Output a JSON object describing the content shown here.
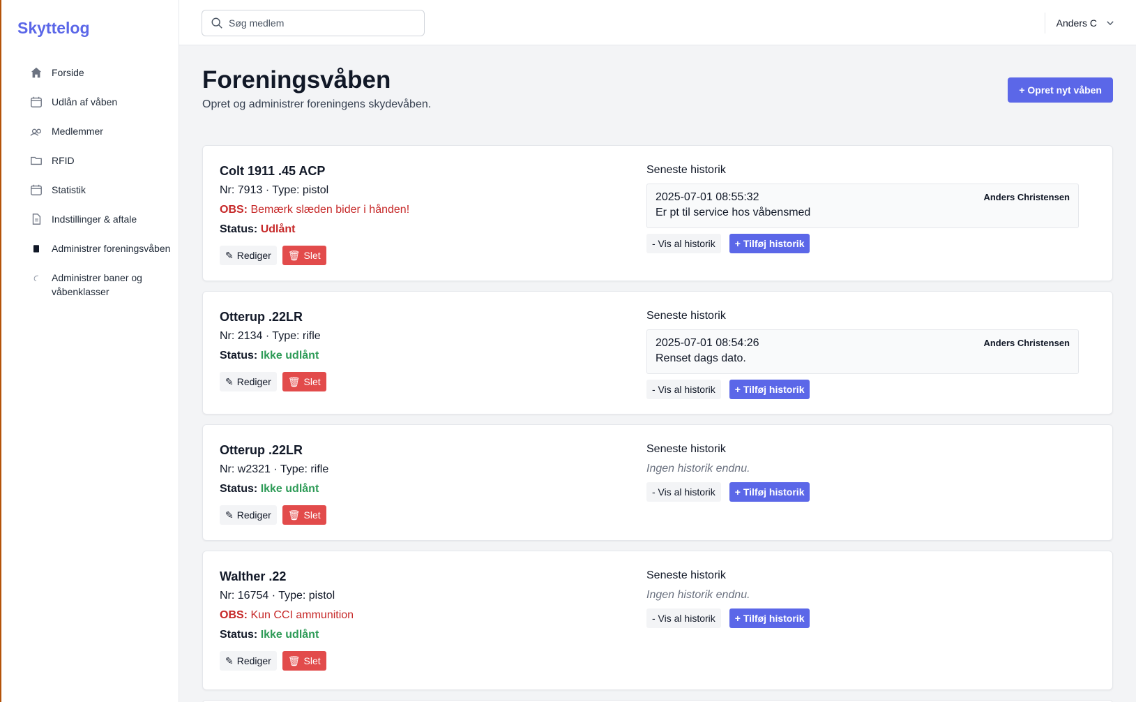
{
  "sidebar": {
    "brand": "Skyttelog",
    "items": [
      {
        "label": "Forside"
      },
      {
        "label": "Udlån af våben"
      },
      {
        "label": "Medlemmer"
      },
      {
        "label": "RFID"
      },
      {
        "label": "Statistik"
      },
      {
        "label": "Indstillinger & aftale"
      },
      {
        "label": "Administrer foreningsvåben"
      },
      {
        "label": "Administrer baner og våbenklasser"
      }
    ]
  },
  "topbar": {
    "search_placeholder": "Søg medlem",
    "user": "Anders C"
  },
  "header": {
    "title": "Foreningsvåben",
    "subtitle": "Opret og administrer foreningens skydevåben.",
    "create_button": "+ Opret nyt våben"
  },
  "labels": {
    "status": "Status:",
    "obs": "OBS:",
    "edit": "Rediger",
    "delete": "Slet",
    "history_title": "Seneste historik",
    "no_history": "Ingen historik endnu.",
    "show_all": "- Vis al historik",
    "add_history": "+ Tilføj historik"
  },
  "weapons": [
    {
      "name": "Colt 1911 .45 ACP",
      "meta": "Nr: 7913 · Type: pistol",
      "obs": "Bemærk slæden bider i hånden!",
      "status": "Udlånt",
      "history": {
        "date": "2025-07-01 08:55:32",
        "text": "Er pt til service hos våbensmed",
        "user": "Anders Christensen"
      }
    },
    {
      "name": "Otterup .22LR",
      "meta": "Nr: 2134 · Type: rifle",
      "status": "Ikke udlånt",
      "history": {
        "date": "2025-07-01 08:54:26",
        "text": "Renset dags dato.",
        "user": "Anders Christensen"
      }
    },
    {
      "name": "Otterup .22LR",
      "meta": "Nr: w2321 · Type: rifle",
      "status": "Ikke udlånt"
    },
    {
      "name": "Walther .22",
      "meta": "Nr: 16754 · Type: pistol",
      "obs": "Kun CCI ammunition",
      "status": "Ikke udlånt"
    }
  ]
}
